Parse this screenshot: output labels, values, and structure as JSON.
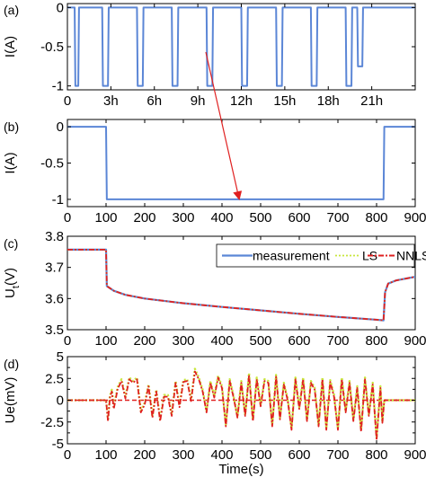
{
  "chart_data": [
    {
      "panel_label": "(a)",
      "type": "line",
      "ylabel": "I(A)",
      "xlabel": "",
      "xlim": [
        0,
        24
      ],
      "ylim": [
        -1.05,
        0.05
      ],
      "xticks": [
        0,
        3,
        6,
        9,
        12,
        15,
        18,
        21
      ],
      "xtick_labels": [
        "0",
        "3h",
        "6h",
        "9h",
        "12h",
        "15h",
        "18h",
        "21h"
      ],
      "yticks": [
        0,
        -0.5,
        -1
      ],
      "ytick_labels": [
        "0",
        "-0.5",
        "-1"
      ],
      "color": "#5b86d6",
      "series": [
        {
          "x": [
            0,
            0.5,
            0.55,
            0.75,
            0.8,
            2.4,
            2.45,
            2.8,
            2.85,
            4.8,
            4.85,
            5.2,
            5.25,
            7.2,
            7.25,
            7.6,
            7.65,
            9.6,
            9.65,
            10.0,
            10.05,
            12.0,
            12.05,
            12.4,
            12.45,
            14.4,
            14.45,
            14.8,
            14.85,
            16.8,
            16.85,
            17.2,
            17.25,
            19.2,
            19.25,
            19.6,
            19.65,
            20.0,
            20.05,
            20.35,
            20.4,
            24
          ],
          "y": [
            0,
            0,
            -1,
            -1,
            0,
            0,
            -1,
            -1,
            0,
            0,
            -1,
            -1,
            0,
            0,
            -1,
            -1,
            0,
            0,
            -1,
            -1,
            0,
            0,
            -1,
            -1,
            0,
            0,
            -1,
            -1,
            0,
            0,
            -1,
            -1,
            0,
            0,
            -1,
            -1,
            0,
            0,
            -0.75,
            -0.75,
            0,
            0
          ]
        }
      ]
    },
    {
      "panel_label": "(b)",
      "type": "line",
      "ylabel": "I(A)",
      "xlabel": "",
      "xlim": [
        0,
        900
      ],
      "ylim": [
        -1.1,
        0.1
      ],
      "xticks": [
        0,
        100,
        200,
        300,
        400,
        500,
        600,
        700,
        800,
        900
      ],
      "yticks": [
        0,
        -0.5,
        -1
      ],
      "ytick_labels": [
        "0",
        "-0.5",
        "-1"
      ],
      "color": "#5b86d6",
      "series": [
        {
          "x": [
            0,
            100,
            102,
            818,
            820,
            900
          ],
          "y": [
            0,
            0,
            -1,
            -1,
            0,
            0
          ]
        }
      ]
    },
    {
      "panel_label": "(c)",
      "type": "line",
      "ylabel": "Ut(V)",
      "xlabel": "",
      "xlim": [
        0,
        900
      ],
      "ylim": [
        3.5,
        3.8
      ],
      "xticks": [
        0,
        100,
        200,
        300,
        400,
        500,
        600,
        700,
        800,
        900
      ],
      "yticks": [
        3.5,
        3.6,
        3.7,
        3.8
      ],
      "ytick_labels": [
        "3.5",
        "3.6",
        "3.7",
        "3.8"
      ],
      "legend": {
        "position": "top-right",
        "entries": [
          "measurement",
          "LS",
          "NNLS"
        ]
      },
      "series": [
        {
          "name": "measurement",
          "color": "#5b86d6",
          "x": [
            0,
            100,
            102,
            120,
            150,
            200,
            300,
            400,
            500,
            600,
            700,
            800,
            818,
            822,
            830,
            850,
            900
          ],
          "y": [
            3.757,
            3.757,
            3.64,
            3.625,
            3.612,
            3.6,
            3.585,
            3.573,
            3.562,
            3.551,
            3.541,
            3.532,
            3.53,
            3.62,
            3.648,
            3.658,
            3.67
          ]
        },
        {
          "name": "LS",
          "color": "#c8e63c",
          "x": [
            0,
            100,
            102,
            120,
            150,
            200,
            300,
            400,
            500,
            600,
            700,
            800,
            818,
            822,
            830,
            850,
            900
          ],
          "y": [
            3.757,
            3.757,
            3.64,
            3.625,
            3.612,
            3.6,
            3.585,
            3.573,
            3.562,
            3.551,
            3.541,
            3.532,
            3.53,
            3.62,
            3.648,
            3.658,
            3.67
          ]
        },
        {
          "name": "NNLS",
          "color": "#e02020",
          "x": [
            0,
            100,
            102,
            120,
            150,
            200,
            300,
            400,
            500,
            600,
            700,
            800,
            818,
            822,
            830,
            850,
            900
          ],
          "y": [
            3.757,
            3.757,
            3.64,
            3.625,
            3.612,
            3.6,
            3.585,
            3.573,
            3.562,
            3.551,
            3.541,
            3.532,
            3.53,
            3.62,
            3.648,
            3.658,
            3.67
          ]
        }
      ]
    },
    {
      "panel_label": "(d)",
      "type": "line",
      "ylabel": "Ue(mV)",
      "xlabel": "Time(s)",
      "xlim": [
        0,
        900
      ],
      "ylim": [
        -5,
        5
      ],
      "xticks": [
        0,
        100,
        200,
        300,
        400,
        500,
        600,
        700,
        800,
        900
      ],
      "yticks": [
        5,
        2.5,
        0,
        -2.5,
        -5
      ],
      "ytick_labels": [
        "5",
        "2.5",
        "0",
        "-2.5",
        "-5"
      ],
      "yticks_minor": [
        3.75,
        1.25,
        -1.25,
        -3.75
      ],
      "series": [
        {
          "name": "LS",
          "color": "#c8e63c",
          "x": [
            0,
            100,
            105,
            110,
            115,
            120,
            130,
            140,
            150,
            160,
            170,
            180,
            190,
            200,
            210,
            220,
            230,
            240,
            250,
            260,
            270,
            280,
            290,
            300,
            310,
            320,
            330,
            340,
            350,
            360,
            370,
            380,
            390,
            400,
            410,
            420,
            430,
            440,
            450,
            460,
            470,
            480,
            490,
            500,
            510,
            520,
            530,
            540,
            550,
            560,
            570,
            580,
            590,
            600,
            610,
            620,
            630,
            640,
            650,
            660,
            670,
            680,
            690,
            700,
            710,
            720,
            730,
            740,
            750,
            760,
            770,
            780,
            790,
            800,
            810,
            815,
            820,
            900
          ],
          "y": [
            0,
            0,
            -2.2,
            0.5,
            1.2,
            -0.8,
            1.5,
            2.4,
            0.4,
            2.6,
            2.2,
            2.6,
            -1.2,
            -0.3,
            1.8,
            -1.8,
            1.2,
            -2.2,
            0.6,
            0.6,
            -1.6,
            2.2,
            -0.6,
            2.3,
            2.4,
            0.1,
            3.6,
            2.6,
            1.2,
            -1.2,
            2.2,
            0.5,
            2.8,
            1.6,
            -2.8,
            2.4,
            0.5,
            -1.8,
            2.2,
            -1.6,
            3.1,
            -2.2,
            2.6,
            -0.5,
            2.4,
            2.2,
            -2.8,
            2.9,
            -2.0,
            2.0,
            0.2,
            -3.2,
            2.6,
            -0.8,
            2.6,
            -2.2,
            2.2,
            1.4,
            -2.8,
            2.6,
            -3.2,
            2.3,
            0.6,
            -3.2,
            2.6,
            -1.2,
            2.2,
            -2.2,
            1.6,
            -3.4,
            2.6,
            -1.6,
            2.0,
            -4.2,
            1.6,
            -2.4,
            0,
            0
          ]
        },
        {
          "name": "NNLS",
          "color": "#e02020",
          "x": [
            0,
            100,
            105,
            110,
            115,
            120,
            130,
            140,
            150,
            160,
            170,
            180,
            190,
            200,
            210,
            220,
            230,
            240,
            250,
            260,
            270,
            280,
            290,
            300,
            310,
            320,
            330,
            340,
            350,
            360,
            370,
            380,
            390,
            400,
            410,
            420,
            430,
            440,
            450,
            460,
            470,
            480,
            490,
            500,
            510,
            520,
            530,
            540,
            550,
            560,
            570,
            580,
            590,
            600,
            610,
            620,
            630,
            640,
            650,
            660,
            670,
            680,
            690,
            700,
            710,
            720,
            730,
            740,
            750,
            760,
            770,
            780,
            790,
            800,
            810,
            815,
            820,
            900
          ],
          "y": [
            0,
            0,
            -2.4,
            0.3,
            1.0,
            -1.0,
            1.3,
            2.2,
            0.2,
            2.4,
            2.0,
            2.4,
            -1.4,
            -0.5,
            1.6,
            -2.0,
            1.0,
            -2.4,
            0.4,
            0.4,
            -1.8,
            2.0,
            -0.8,
            2.1,
            2.2,
            -0.1,
            3.3,
            2.4,
            1.0,
            -1.4,
            2.0,
            0.3,
            2.6,
            1.4,
            -3.0,
            2.2,
            0.3,
            -2.0,
            2.0,
            -1.8,
            2.9,
            -2.4,
            2.4,
            -0.7,
            2.2,
            2.0,
            -3.0,
            2.7,
            -2.2,
            1.8,
            0.0,
            -3.4,
            2.4,
            -1.0,
            2.4,
            -2.4,
            2.0,
            1.2,
            -3.0,
            2.4,
            -3.4,
            2.1,
            0.4,
            -3.4,
            2.4,
            -1.4,
            2.0,
            -2.4,
            1.4,
            -3.6,
            2.4,
            -1.8,
            1.8,
            -4.6,
            1.4,
            -2.6,
            0,
            0
          ]
        }
      ]
    }
  ]
}
